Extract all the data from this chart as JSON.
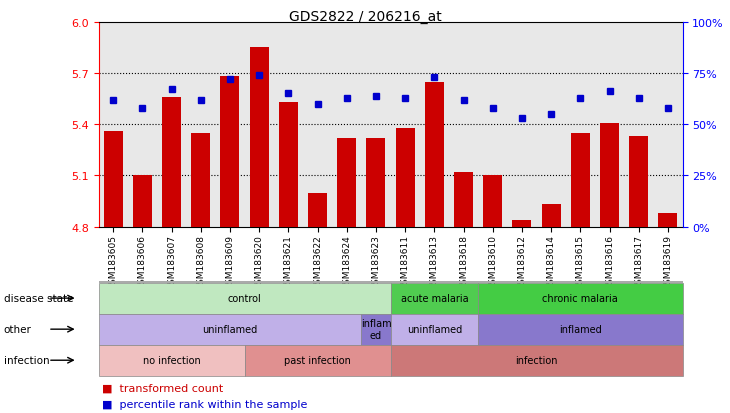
{
  "title": "GDS2822 / 206216_at",
  "samples": [
    "GSM183605",
    "GSM183606",
    "GSM183607",
    "GSM183608",
    "GSM183609",
    "GSM183620",
    "GSM183621",
    "GSM183622",
    "GSM183624",
    "GSM183623",
    "GSM183611",
    "GSM183613",
    "GSM183618",
    "GSM183610",
    "GSM183612",
    "GSM183614",
    "GSM183615",
    "GSM183616",
    "GSM183617",
    "GSM183619"
  ],
  "bar_values": [
    5.36,
    5.1,
    5.56,
    5.35,
    5.68,
    5.85,
    5.53,
    5.0,
    5.32,
    5.32,
    5.38,
    5.65,
    5.12,
    5.1,
    4.84,
    4.93,
    5.35,
    5.41,
    5.33,
    4.88
  ],
  "percentile_values": [
    62,
    58,
    67,
    62,
    72,
    74,
    65,
    60,
    63,
    64,
    63,
    73,
    62,
    58,
    53,
    55,
    63,
    66,
    63,
    58
  ],
  "ylim_left": [
    4.8,
    6.0
  ],
  "ylim_right": [
    0,
    100
  ],
  "yticks_left": [
    4.8,
    5.1,
    5.4,
    5.7,
    6.0
  ],
  "yticks_right": [
    0,
    25,
    50,
    75,
    100
  ],
  "bar_color": "#cc0000",
  "square_color": "#0000cc",
  "bg_color": "#e8e8e8",
  "disease_state_bands": [
    {
      "label": "control",
      "start": 0,
      "end": 10,
      "color": "#c0e8c0"
    },
    {
      "label": "acute malaria",
      "start": 10,
      "end": 13,
      "color": "#50cc50"
    },
    {
      "label": "chronic malaria",
      "start": 13,
      "end": 20,
      "color": "#44cc44"
    }
  ],
  "other_bands": [
    {
      "label": "uninflamed",
      "start": 0,
      "end": 9,
      "color": "#c0b0e8"
    },
    {
      "label": "inflam\ned",
      "start": 9,
      "end": 10,
      "color": "#8878cc"
    },
    {
      "label": "uninflamed",
      "start": 10,
      "end": 13,
      "color": "#c0b0e8"
    },
    {
      "label": "inflamed",
      "start": 13,
      "end": 20,
      "color": "#8878cc"
    }
  ],
  "infection_bands": [
    {
      "label": "no infection",
      "start": 0,
      "end": 5,
      "color": "#f0c0c0"
    },
    {
      "label": "past infection",
      "start": 5,
      "end": 10,
      "color": "#e09090"
    },
    {
      "label": "infection",
      "start": 10,
      "end": 20,
      "color": "#cc7878"
    }
  ],
  "row_labels": [
    "disease state",
    "other",
    "infection"
  ],
  "hlines": [
    5.1,
    5.4,
    5.7
  ]
}
